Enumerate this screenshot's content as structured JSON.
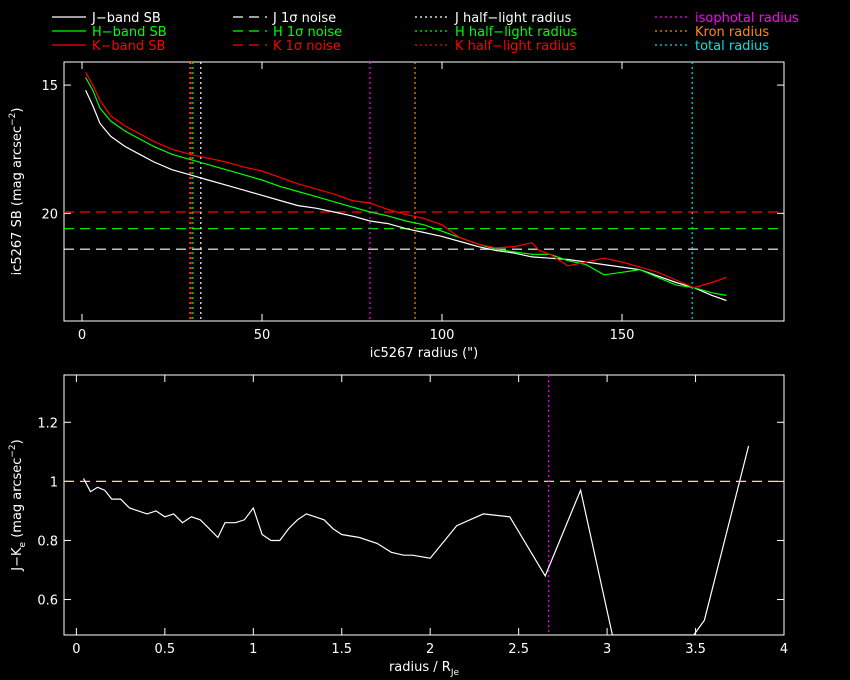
{
  "legend": {
    "columns": [
      [
        {
          "label": "J−band SB",
          "color": "#ffffff",
          "dash": "solid"
        },
        {
          "label": "H−band SB",
          "color": "#00ff00",
          "dash": "solid"
        },
        {
          "label": "K−band SB",
          "color": "#ff0000",
          "dash": "solid"
        }
      ],
      [
        {
          "label": "J 1σ noise",
          "color": "#ffffff",
          "dash": "dashed"
        },
        {
          "label": "H 1σ noise",
          "color": "#00ff00",
          "dash": "dashed"
        },
        {
          "label": "K 1σ noise",
          "color": "#ff0000",
          "dash": "dashed"
        }
      ],
      [
        {
          "label": "J half−light radius",
          "color": "#ffffff",
          "dash": "dotted"
        },
        {
          "label": "H half−light radius",
          "color": "#00ff00",
          "dash": "dotted"
        },
        {
          "label": "K half−light radius",
          "color": "#ff0000",
          "dash": "dotted"
        }
      ],
      [
        {
          "label": "isophotal radius",
          "color": "#ff00ff",
          "dash": "dotted",
          "text_color": "#ff00ff"
        },
        {
          "label": "Kron radius",
          "color": "#ff8c00",
          "dash": "dotted",
          "text_color": "#ff8c00"
        },
        {
          "label": "total radius",
          "color": "#00e5e5",
          "dash": "dotted",
          "text_color": "#00e5e5"
        }
      ]
    ]
  },
  "chart_data": [
    {
      "type": "line",
      "xlabel": "ic5267 radius (\")",
      "ylabel": "ic5267 SB (mag arcsec",
      "ylabel_sup": "−2",
      "ylabel_close": ")",
      "xlim": [
        -5,
        195
      ],
      "ylim": [
        24.2,
        14.1
      ],
      "y_inverted": true,
      "xticks": [
        0,
        50,
        100,
        150
      ],
      "yticks": [
        15,
        20
      ],
      "series": [
        {
          "name": "J−band SB",
          "color": "#ffffff",
          "x": [
            1,
            3,
            5,
            8,
            12,
            16,
            20,
            25,
            30,
            35,
            40,
            45,
            50,
            55,
            60,
            65,
            70,
            75,
            80,
            85,
            90,
            95,
            100,
            105,
            110,
            115,
            120,
            125,
            130,
            135,
            140,
            145,
            150,
            155,
            160,
            165,
            170,
            175,
            179
          ],
          "y": [
            15.2,
            15.8,
            16.5,
            17.0,
            17.4,
            17.7,
            18.0,
            18.3,
            18.5,
            18.7,
            18.9,
            19.1,
            19.3,
            19.5,
            19.7,
            19.8,
            19.95,
            20.1,
            20.3,
            20.4,
            20.6,
            20.75,
            20.9,
            21.1,
            21.3,
            21.45,
            21.55,
            21.7,
            21.75,
            21.8,
            21.9,
            22.0,
            22.1,
            22.2,
            22.45,
            22.7,
            22.9,
            23.2,
            23.4
          ]
        },
        {
          "name": "H−band SB",
          "color": "#00ff00",
          "x": [
            1,
            3,
            5,
            8,
            12,
            16,
            20,
            25,
            30,
            35,
            40,
            45,
            50,
            55,
            60,
            65,
            70,
            75,
            80,
            85,
            90,
            95,
            100,
            105,
            110,
            115,
            120,
            125,
            130,
            135,
            140,
            145,
            150,
            155,
            160,
            165,
            170,
            175,
            179
          ],
          "y": [
            14.7,
            15.2,
            15.9,
            16.4,
            16.8,
            17.1,
            17.4,
            17.7,
            17.9,
            18.1,
            18.3,
            18.5,
            18.7,
            18.95,
            19.15,
            19.35,
            19.55,
            19.75,
            19.95,
            20.1,
            20.3,
            20.45,
            20.7,
            20.95,
            21.2,
            21.4,
            21.5,
            21.6,
            21.6,
            21.85,
            22.0,
            22.4,
            22.3,
            22.2,
            22.5,
            22.8,
            22.9,
            23.1,
            23.2
          ]
        },
        {
          "name": "K−band SB",
          "color": "#ff0000",
          "x": [
            1,
            3,
            5,
            8,
            12,
            16,
            20,
            25,
            30,
            35,
            40,
            45,
            50,
            55,
            60,
            65,
            70,
            75,
            80,
            85,
            90,
            95,
            100,
            105,
            110,
            115,
            120,
            125,
            127,
            130,
            135,
            140,
            145,
            150,
            155,
            160,
            165,
            170,
            175,
            179
          ],
          "y": [
            14.5,
            15.0,
            15.6,
            16.2,
            16.6,
            16.9,
            17.2,
            17.5,
            17.7,
            17.85,
            18.0,
            18.2,
            18.35,
            18.6,
            18.85,
            19.05,
            19.25,
            19.5,
            19.6,
            19.85,
            20.05,
            20.2,
            20.45,
            20.95,
            21.2,
            21.35,
            21.3,
            21.15,
            21.45,
            21.6,
            22.05,
            21.9,
            21.75,
            21.9,
            22.1,
            22.3,
            22.6,
            22.9,
            22.7,
            22.5
          ]
        }
      ],
      "hlines": [
        {
          "label": "J 1σ noise",
          "y": 21.4,
          "color": "#ffffff",
          "dash": "dashed"
        },
        {
          "label": "H 1σ noise",
          "y": 20.6,
          "color": "#00ff00",
          "dash": "dashed"
        },
        {
          "label": "K 1σ noise",
          "y": 19.95,
          "color": "#ff0000",
          "dash": "dashed"
        }
      ],
      "vlines": [
        {
          "label": "Kron radius",
          "x": 30,
          "color": "#ff8c00",
          "dash": "dotted"
        },
        {
          "label": "K half−light radius",
          "x": 30.4,
          "color": "#ff0000",
          "dash": "dotted"
        },
        {
          "label": "H half−light radius",
          "x": 30.8,
          "color": "#00ff00",
          "dash": "dotted"
        },
        {
          "label": "J half−light radius",
          "x": 33,
          "color": "#ffffff",
          "dash": "dotted"
        },
        {
          "label": "isophotal radius",
          "x": 80,
          "color": "#ff00ff",
          "dash": "dotted"
        },
        {
          "label": "Kron radius",
          "x": 92.5,
          "color": "#ff8c00",
          "dash": "dotted"
        },
        {
          "label": "total radius",
          "x": 169.5,
          "color": "#00e5e5",
          "dash": "dotted"
        }
      ]
    },
    {
      "type": "line",
      "xlabel": "radius / R",
      "xlabel_sub": "Je",
      "ylabel": "J−K",
      "ylabel_sub": "e",
      "ylabel_units": " (mag arcsec",
      "ylabel_sup": "−2",
      "ylabel_close": ")",
      "xlim": [
        -0.07,
        4.0
      ],
      "ylim": [
        0.48,
        1.36
      ],
      "xticks": [
        0,
        0.5,
        1,
        1.5,
        2,
        2.5,
        3,
        3.5,
        4
      ],
      "yticks": [
        0.6,
        0.8,
        1,
        1.2
      ],
      "series": [
        {
          "name": "J−K",
          "color": "#ffffff",
          "x": [
            0.04,
            0.08,
            0.12,
            0.16,
            0.2,
            0.25,
            0.3,
            0.35,
            0.4,
            0.45,
            0.5,
            0.55,
            0.6,
            0.65,
            0.7,
            0.75,
            0.8,
            0.84,
            0.9,
            0.95,
            1.0,
            1.05,
            1.1,
            1.15,
            1.2,
            1.25,
            1.3,
            1.35,
            1.4,
            1.45,
            1.5,
            1.6,
            1.7,
            1.78,
            1.85,
            1.9,
            2.0,
            2.15,
            2.3,
            2.45,
            2.65,
            2.85,
            3.03,
            3.49,
            3.55,
            3.8
          ],
          "y": [
            1.01,
            0.965,
            0.98,
            0.97,
            0.94,
            0.94,
            0.91,
            0.9,
            0.89,
            0.9,
            0.88,
            0.89,
            0.86,
            0.88,
            0.87,
            0.84,
            0.81,
            0.86,
            0.86,
            0.87,
            0.91,
            0.82,
            0.8,
            0.8,
            0.84,
            0.87,
            0.89,
            0.88,
            0.87,
            0.84,
            0.82,
            0.81,
            0.79,
            0.76,
            0.75,
            0.75,
            0.74,
            0.85,
            0.89,
            0.88,
            0.68,
            0.97,
            0.48,
            0.48,
            0.53,
            1.12
          ]
        }
      ],
      "hlines": [
        {
          "label": "",
          "y": 1.0,
          "color": "#ffdd88",
          "dash": "dashed"
        }
      ],
      "vlines": [
        {
          "label": "isophotal radius",
          "x": 2.67,
          "color": "#ff00ff",
          "dash": "dotted"
        }
      ]
    }
  ]
}
